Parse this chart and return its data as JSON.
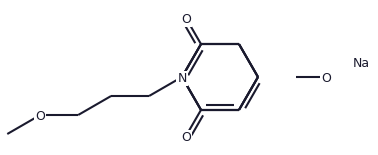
{
  "bg_color": "#ffffff",
  "bond_color": "#1a1a2e",
  "lw": 1.5,
  "dbo": 0.018,
  "fs": 9,
  "figsize": [
    3.78,
    1.55
  ],
  "dpi": 100,
  "xlim": [
    0,
    3.78
  ],
  "ylim": [
    0,
    1.55
  ]
}
